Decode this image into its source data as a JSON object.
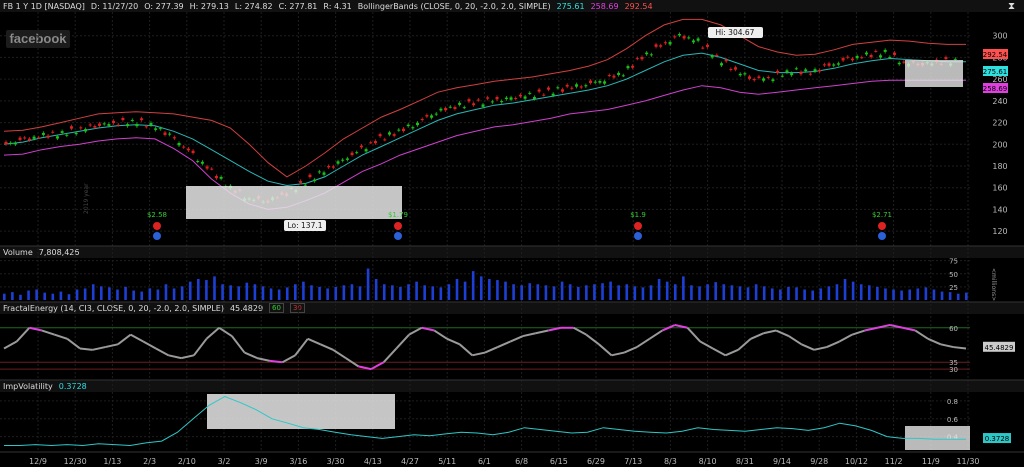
{
  "header": {
    "symbol": "FB 1 Y 1D [NASDAQ]",
    "date": "D: 11/27/20",
    "open": "O: 277.39",
    "high": "H: 279.13",
    "low": "L: 274.82",
    "close": "C: 277.81",
    "range": "R: 4.31",
    "study": "BollingerBands (CLOSE, 0, 20, -2.0, 2.0, SIMPLE)",
    "bb_mid": "275.61",
    "bb_low": "258.69",
    "bb_high": "292.54"
  },
  "watermark": "facebook",
  "annotations": {
    "hi": "Hi: 304.67",
    "lo": "Lo: 137.1",
    "year_mark": "2019 year",
    "divs": [
      "$2.58",
      "$1.79",
      "$1.9",
      "$2.71"
    ]
  },
  "volume_header": {
    "label": "Volume",
    "value": "7,808,426",
    "unit": "<millions>"
  },
  "fe_header": {
    "label": "FractalEnergy (14, CI3, CLOSE, 0, 20, -2.0, 2.0, SIMPLE)",
    "value": "45.4829",
    "b1": "60",
    "b2": "30"
  },
  "iv_header": {
    "label": "ImpVolatility",
    "value": "0.3728"
  },
  "colors": {
    "up": "#19c119",
    "down": "#e02020",
    "upper": "#d04040",
    "mid": "#29b6b6",
    "lower": "#d040d0",
    "vol": "#1e3fd6",
    "iv": "#2ec7c7",
    "fe": "#9a9a9a"
  },
  "chart_data": [
    {
      "type": "line",
      "title": "FB 1 Y 1D [NASDAQ]",
      "x_ticks": [
        "12/9",
        "12/30",
        "1/13",
        "2/3",
        "2/10",
        "3/2",
        "3/9",
        "3/16",
        "3/30",
        "4/13",
        "4/27",
        "5/11",
        "6/1",
        "6/8",
        "6/15",
        "6/29",
        "7/13",
        "8/3",
        "8/10",
        "8/31",
        "9/14",
        "9/28",
        "10/12",
        "11/2",
        "11/9",
        "11/30"
      ],
      "y_ticks": [
        120,
        140,
        160,
        180,
        200,
        220,
        240,
        260,
        280,
        300
      ],
      "ylim": [
        110,
        320
      ],
      "series": [
        {
          "name": "close",
          "values": [
            200,
            204,
            208,
            210,
            214,
            218,
            220,
            221,
            216,
            205,
            190,
            175,
            160,
            150,
            148,
            155,
            165,
            175,
            185,
            195,
            205,
            212,
            220,
            230,
            235,
            238,
            240,
            242,
            245,
            248,
            252,
            255,
            260,
            266,
            280,
            290,
            300,
            295,
            280,
            268,
            260,
            262,
            268,
            266,
            272,
            278,
            282,
            285,
            275,
            274,
            276,
            277
          ]
        },
        {
          "name": "BB upper",
          "values": [
            212,
            213,
            216,
            220,
            224,
            228,
            229,
            230,
            229,
            228,
            225,
            222,
            215,
            200,
            183,
            170,
            180,
            192,
            205,
            215,
            225,
            232,
            240,
            248,
            252,
            255,
            258,
            260,
            262,
            265,
            268,
            272,
            278,
            288,
            300,
            310,
            315,
            315,
            310,
            300,
            290,
            285,
            282,
            283,
            287,
            292,
            294,
            296,
            295,
            293,
            292,
            292
          ]
        },
        {
          "name": "BB mid",
          "values": [
            200,
            202,
            206,
            209,
            212,
            215,
            217,
            218,
            217,
            212,
            205,
            195,
            185,
            175,
            166,
            162,
            164,
            170,
            180,
            190,
            198,
            206,
            214,
            222,
            228,
            232,
            236,
            238,
            241,
            244,
            247,
            250,
            254,
            260,
            268,
            276,
            282,
            284,
            280,
            274,
            268,
            266,
            266,
            267,
            270,
            274,
            277,
            279,
            278,
            277,
            276,
            276
          ]
        },
        {
          "name": "BB lower",
          "values": [
            190,
            191,
            195,
            198,
            200,
            203,
            205,
            206,
            205,
            196,
            185,
            168,
            155,
            145,
            140,
            142,
            148,
            155,
            165,
            175,
            182,
            190,
            196,
            202,
            208,
            212,
            216,
            218,
            221,
            224,
            228,
            230,
            232,
            236,
            240,
            245,
            250,
            254,
            252,
            248,
            246,
            248,
            250,
            252,
            254,
            256,
            258,
            259,
            259,
            259,
            259,
            259
          ]
        }
      ]
    },
    {
      "type": "bar",
      "title": "Volume",
      "ylabel": "<millions>",
      "y_ticks": [
        25,
        50,
        75
      ],
      "ylim": [
        0,
        80
      ],
      "values": [
        12,
        15,
        10,
        18,
        20,
        14,
        12,
        16,
        11,
        20,
        22,
        30,
        26,
        24,
        20,
        25,
        18,
        16,
        22,
        20,
        30,
        22,
        26,
        35,
        40,
        38,
        45,
        30,
        28,
        26,
        33,
        30,
        26,
        22,
        20,
        24,
        30,
        35,
        28,
        25,
        22,
        25,
        28,
        30,
        26,
        60,
        40,
        30,
        28,
        25,
        30,
        35,
        28,
        26,
        24,
        30,
        40,
        35,
        55,
        45,
        40,
        38,
        35,
        30,
        28,
        32,
        30,
        28,
        26,
        35,
        30,
        25,
        28,
        30,
        32,
        35,
        28,
        30,
        26,
        24,
        28,
        40,
        35,
        30,
        45,
        28,
        26,
        30,
        34,
        30,
        28,
        26,
        24,
        30,
        26,
        22,
        20,
        25,
        24,
        20,
        18,
        22,
        26,
        30,
        40,
        35,
        30,
        28,
        25,
        22,
        20,
        18,
        20,
        22,
        24,
        20,
        16,
        15,
        12,
        14
      ]
    },
    {
      "type": "line",
      "title": "FractalEnergy",
      "y_ticks": [
        30,
        35,
        45.4829,
        60
      ],
      "ylim": [
        25,
        70
      ],
      "values": [
        45,
        50,
        60,
        58,
        55,
        52,
        45,
        44,
        46,
        48,
        55,
        50,
        45,
        40,
        38,
        40,
        52,
        60,
        54,
        42,
        38,
        36,
        35,
        40,
        52,
        48,
        44,
        38,
        32,
        30,
        35,
        45,
        55,
        60,
        58,
        52,
        48,
        40,
        42,
        46,
        50,
        54,
        56,
        58,
        60,
        60,
        55,
        48,
        40,
        42,
        46,
        52,
        58,
        62,
        60,
        50,
        45,
        40,
        44,
        52,
        56,
        58,
        54,
        48,
        44,
        46,
        50,
        55,
        58,
        60,
        62,
        60,
        58,
        52,
        48,
        46,
        45
      ]
    },
    {
      "type": "line",
      "title": "ImpVolatility",
      "y_ticks": [
        0.4,
        0.6,
        0.8
      ],
      "ylim": [
        0.25,
        0.9
      ],
      "values": [
        0.3,
        0.3,
        0.31,
        0.3,
        0.31,
        0.3,
        0.32,
        0.31,
        0.3,
        0.33,
        0.35,
        0.45,
        0.6,
        0.75,
        0.85,
        0.78,
        0.7,
        0.6,
        0.55,
        0.5,
        0.48,
        0.45,
        0.42,
        0.4,
        0.38,
        0.4,
        0.42,
        0.41,
        0.43,
        0.45,
        0.44,
        0.42,
        0.45,
        0.5,
        0.48,
        0.46,
        0.44,
        0.45,
        0.5,
        0.48,
        0.46,
        0.45,
        0.44,
        0.46,
        0.5,
        0.48,
        0.47,
        0.46,
        0.48,
        0.5,
        0.49,
        0.47,
        0.5,
        0.55,
        0.52,
        0.47,
        0.4,
        0.38,
        0.38,
        0.37,
        0.37,
        0.37
      ]
    }
  ]
}
